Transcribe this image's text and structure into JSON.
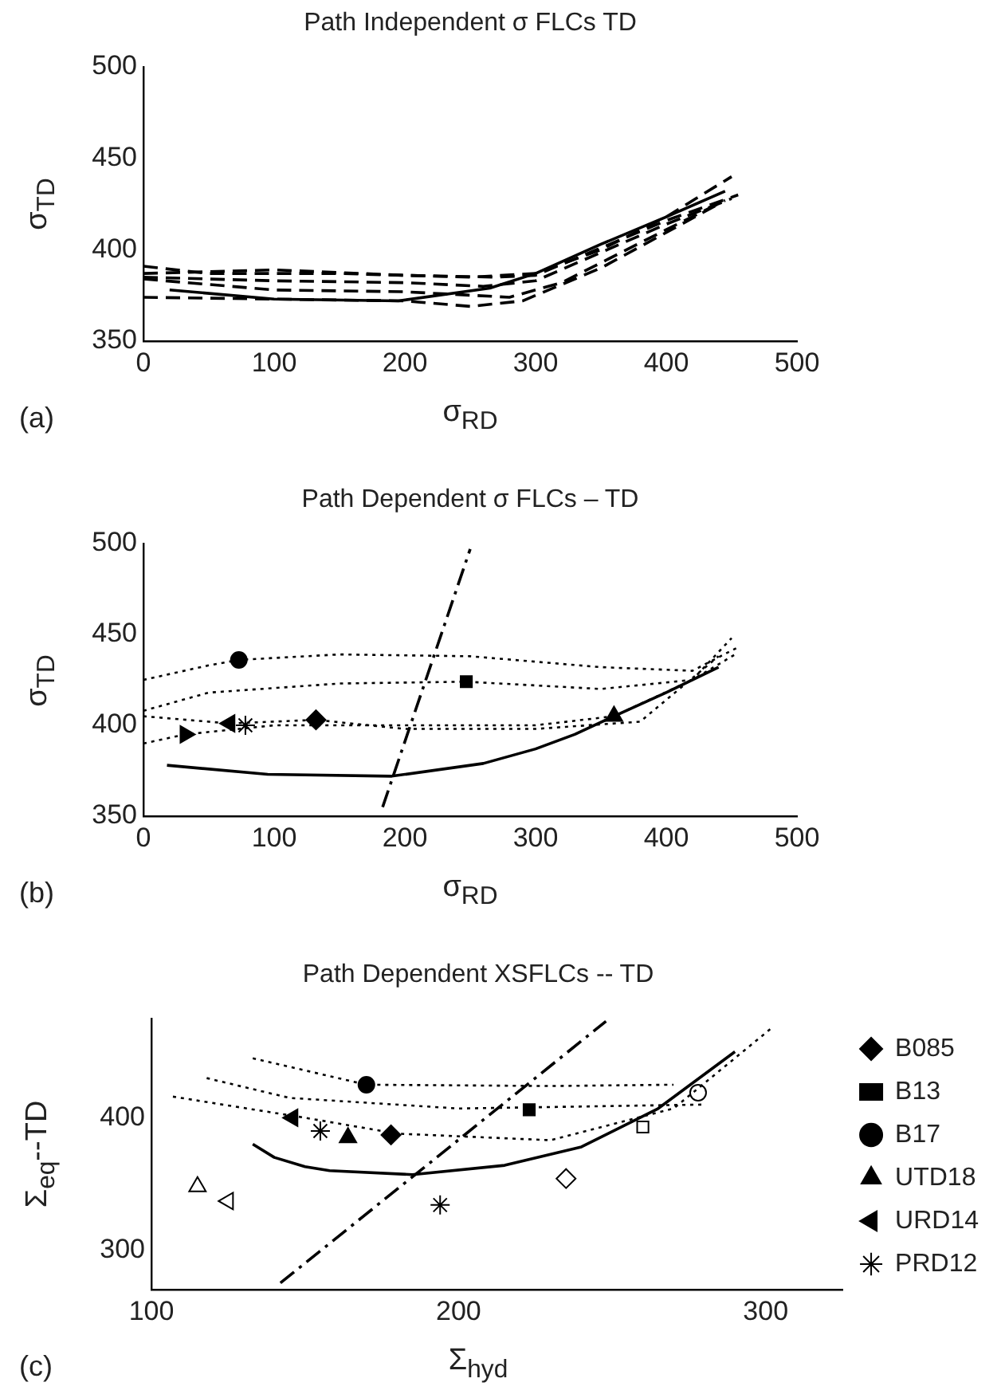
{
  "chart_data": [
    {
      "type": "line",
      "title": "Path Independent σ FLCs TD",
      "xlabel": "σ$_{RD}$",
      "ylabel": "σ$_{TD}$",
      "annotations": [
        "(a)"
      ],
      "xlim": [
        0,
        500
      ],
      "xticks": [
        0,
        100,
        200,
        300,
        400,
        500
      ],
      "ylim": [
        350,
        500
      ],
      "yticks": [
        350,
        400,
        450,
        500
      ],
      "grid": false,
      "legend": false,
      "series": [
        {
          "color": "#000000",
          "line_style": "solid",
          "marker": "none",
          "x": [
            20,
            100,
            195,
            265,
            300,
            350,
            400,
            445
          ],
          "values": [
            378,
            373,
            372,
            379,
            387,
            403,
            418,
            432
          ]
        },
        {
          "color": "#000000",
          "line_style": "dashed",
          "marker": "none",
          "x": [
            0,
            50,
            150,
            250,
            300,
            350,
            400,
            450
          ],
          "values": [
            391,
            387,
            387,
            385,
            387,
            400,
            418,
            440
          ]
        },
        {
          "color": "#000000",
          "line_style": "dashed",
          "marker": "none",
          "x": [
            0,
            100,
            200,
            270,
            300,
            400,
            455
          ],
          "values": [
            387,
            389,
            386,
            385,
            386,
            416,
            430
          ]
        },
        {
          "color": "#000000",
          "line_style": "dashed",
          "marker": "none",
          "x": [
            0,
            100,
            200,
            260,
            300,
            400,
            450
          ],
          "values": [
            385,
            383,
            382,
            380,
            383,
            414,
            428
          ]
        },
        {
          "color": "#000000",
          "line_style": "dashed",
          "marker": "none",
          "x": [
            0,
            100,
            200,
            280,
            320,
            400,
            445
          ],
          "values": [
            384,
            378,
            377,
            374,
            382,
            411,
            427
          ]
        },
        {
          "color": "#000000",
          "line_style": "dashed",
          "marker": "none",
          "x": [
            0,
            100,
            200,
            250,
            290,
            350,
            440
          ],
          "values": [
            374,
            373,
            372,
            369,
            372,
            390,
            425
          ]
        }
      ]
    },
    {
      "type": "line",
      "title": "Path Dependent σ FLCs – TD",
      "xlabel": "σ$_{RD}$",
      "ylabel": "σ$_{TD}$",
      "annotations": [
        "(b)"
      ],
      "xlim": [
        0,
        500
      ],
      "xticks": [
        0,
        100,
        200,
        300,
        400,
        500
      ],
      "ylim": [
        350,
        500
      ],
      "yticks": [
        350,
        400,
        450,
        500
      ],
      "grid": false,
      "legend": false,
      "series": [
        {
          "color": "#000000",
          "line_style": "solid",
          "marker": "none",
          "x": [
            18,
            95,
            190,
            260,
            300,
            330,
            360,
            400,
            440
          ],
          "values": [
            378,
            373,
            372,
            379,
            387,
            395,
            405,
            418,
            432
          ]
        },
        {
          "color": "#000000",
          "line_style": "dashdot",
          "marker": "none",
          "x": [
            183,
            250
          ],
          "values": [
            355,
            497
          ]
        },
        {
          "color": "#000000",
          "line_style": "dotted",
          "marker": "none",
          "x": [
            0,
            50,
            73,
            150,
            250,
            350,
            420,
            455
          ],
          "values": [
            425,
            433,
            436,
            439,
            438,
            432,
            430,
            443
          ]
        },
        {
          "color": "#000000",
          "line_style": "dotted",
          "marker": "none",
          "x": [
            0,
            50,
            150,
            247,
            350,
            420,
            455
          ],
          "values": [
            408,
            418,
            423,
            424,
            420,
            425,
            440
          ]
        },
        {
          "color": "#000000",
          "line_style": "dotted",
          "marker": "none",
          "x": [
            0,
            66,
            132,
            200,
            300,
            380,
            440
          ],
          "values": [
            405,
            401,
            403,
            398,
            398,
            402,
            438
          ]
        },
        {
          "color": "#000000",
          "line_style": "dotted",
          "marker": "none",
          "x": [
            0,
            32,
            100,
            200,
            300,
            360,
            420,
            450
          ],
          "values": [
            390,
            395,
            400,
            400,
            400,
            405,
            425,
            448
          ]
        },
        {
          "color": "#000000",
          "marker": "circle",
          "x": [
            73
          ],
          "values": [
            436
          ]
        },
        {
          "color": "#000000",
          "marker": "square",
          "x": [
            247
          ],
          "values": [
            424
          ]
        },
        {
          "color": "#000000",
          "marker": "diamond",
          "x": [
            132
          ],
          "values": [
            403
          ]
        },
        {
          "color": "#000000",
          "marker": "triangle-left",
          "x": [
            66
          ],
          "values": [
            401
          ]
        },
        {
          "color": "#000000",
          "marker": "cross",
          "x": [
            78
          ],
          "values": [
            400
          ]
        },
        {
          "color": "#000000",
          "marker": "triangle-right",
          "x": [
            32
          ],
          "values": [
            395
          ]
        },
        {
          "color": "#000000",
          "marker": "triangle",
          "x": [
            360
          ],
          "values": [
            405
          ]
        }
      ]
    },
    {
      "type": "line",
      "title": "Path Dependent XSFLCs -- TD",
      "xlabel": "Σ$_{hyd}$",
      "ylabel": "Σ$_{eq}$--TD",
      "annotations": [
        "(c)"
      ],
      "xlim": [
        100,
        325
      ],
      "xticks": [
        100,
        200,
        300
      ],
      "ylim": [
        270,
        475
      ],
      "yticks": [
        300,
        400
      ],
      "grid": false,
      "legend": "right",
      "series": [
        {
          "color": "#000000",
          "line_style": "solid",
          "marker": "none",
          "x": [
            133,
            140,
            150,
            158,
            185,
            215,
            240,
            265,
            290
          ],
          "values": [
            380,
            370,
            363,
            360,
            357,
            364,
            378,
            407,
            450
          ]
        },
        {
          "color": "#000000",
          "line_style": "dashdot",
          "marker": "none",
          "x": [
            142,
            248
          ],
          "values": [
            275,
            473
          ]
        },
        {
          "color": "#000000",
          "line_style": "dotted",
          "marker": "none",
          "x": [
            107,
            150,
            180,
            230,
            270,
            302
          ],
          "values": [
            416,
            400,
            388,
            383,
            407,
            468
          ]
        },
        {
          "color": "#000000",
          "line_style": "dotted",
          "marker": "none",
          "x": [
            118,
            145,
            200,
            280
          ],
          "values": [
            430,
            415,
            407,
            410
          ]
        },
        {
          "color": "#000000",
          "line_style": "dotted",
          "marker": "none",
          "x": [
            133,
            170,
            230,
            270
          ],
          "values": [
            445,
            425,
            424,
            425
          ]
        },
        {
          "name": "B085",
          "color": "#000000",
          "marker": "diamond",
          "x": [
            178
          ],
          "values": [
            387
          ]
        },
        {
          "name": "B13",
          "color": "#000000",
          "marker": "square",
          "x": [
            223
          ],
          "values": [
            406
          ]
        },
        {
          "name": "B17",
          "color": "#000000",
          "marker": "circle",
          "x": [
            170
          ],
          "values": [
            425
          ]
        },
        {
          "name": "UTD18",
          "color": "#000000",
          "marker": "triangle",
          "x": [
            164
          ],
          "values": [
            385
          ]
        },
        {
          "name": "URD14",
          "color": "#000000",
          "marker": "triangle-left",
          "x": [
            146
          ],
          "values": [
            400
          ]
        },
        {
          "name": "PRD12",
          "color": "#000000",
          "marker": "cross",
          "x": [
            155
          ],
          "values": [
            390
          ]
        },
        {
          "color": "#000000",
          "marker": "diamond-open",
          "x": [
            235
          ],
          "values": [
            354
          ]
        },
        {
          "color": "#000000",
          "marker": "square-open",
          "x": [
            260
          ],
          "values": [
            393
          ]
        },
        {
          "color": "#000000",
          "marker": "circle-open",
          "x": [
            278
          ],
          "values": [
            419
          ]
        },
        {
          "color": "#000000",
          "marker": "triangle-open",
          "x": [
            115
          ],
          "values": [
            348
          ]
        },
        {
          "color": "#000000",
          "marker": "triangle-left-open",
          "x": [
            125
          ],
          "values": [
            337
          ]
        },
        {
          "color": "#000000",
          "marker": "cross",
          "x": [
            194
          ],
          "values": [
            334
          ]
        }
      ]
    }
  ]
}
